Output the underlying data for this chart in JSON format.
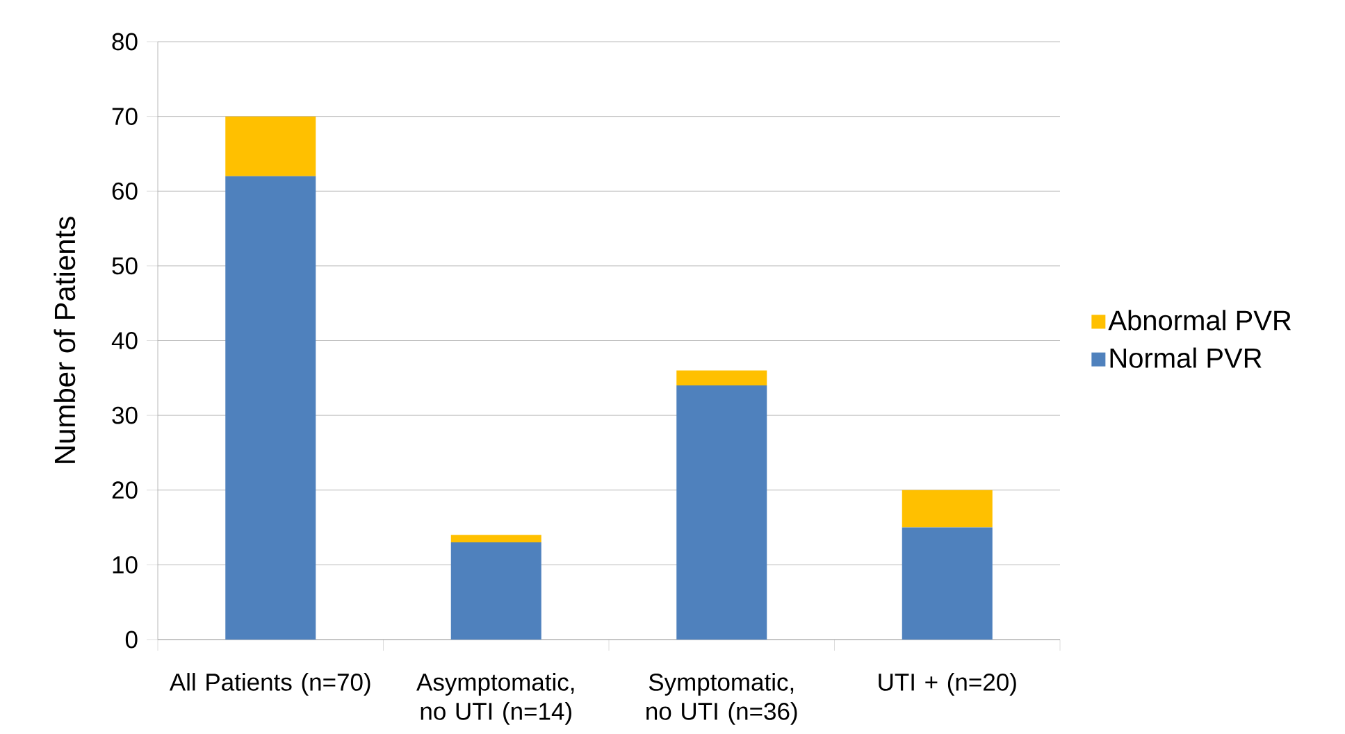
{
  "chart_data": {
    "type": "bar",
    "stacked": true,
    "ylabel": "Number of Patients",
    "categories": [
      "All Patients (n=70)",
      "Asymptomatic, no UTI (n=14)",
      "Symptomatic, no UTI (n=36)",
      "UTI + (n=20)"
    ],
    "series": [
      {
        "name": "Normal PVR",
        "color": "#4f81bd",
        "values": [
          62,
          13,
          34,
          15
        ]
      },
      {
        "name": "Abnormal PVR",
        "color": "#ffc000",
        "values": [
          8,
          1,
          2,
          5
        ]
      }
    ],
    "ylim": [
      0,
      80
    ],
    "yticks": [
      0,
      10,
      20,
      30,
      40,
      50,
      60,
      70,
      80
    ],
    "grid": "y",
    "legend": "right"
  }
}
